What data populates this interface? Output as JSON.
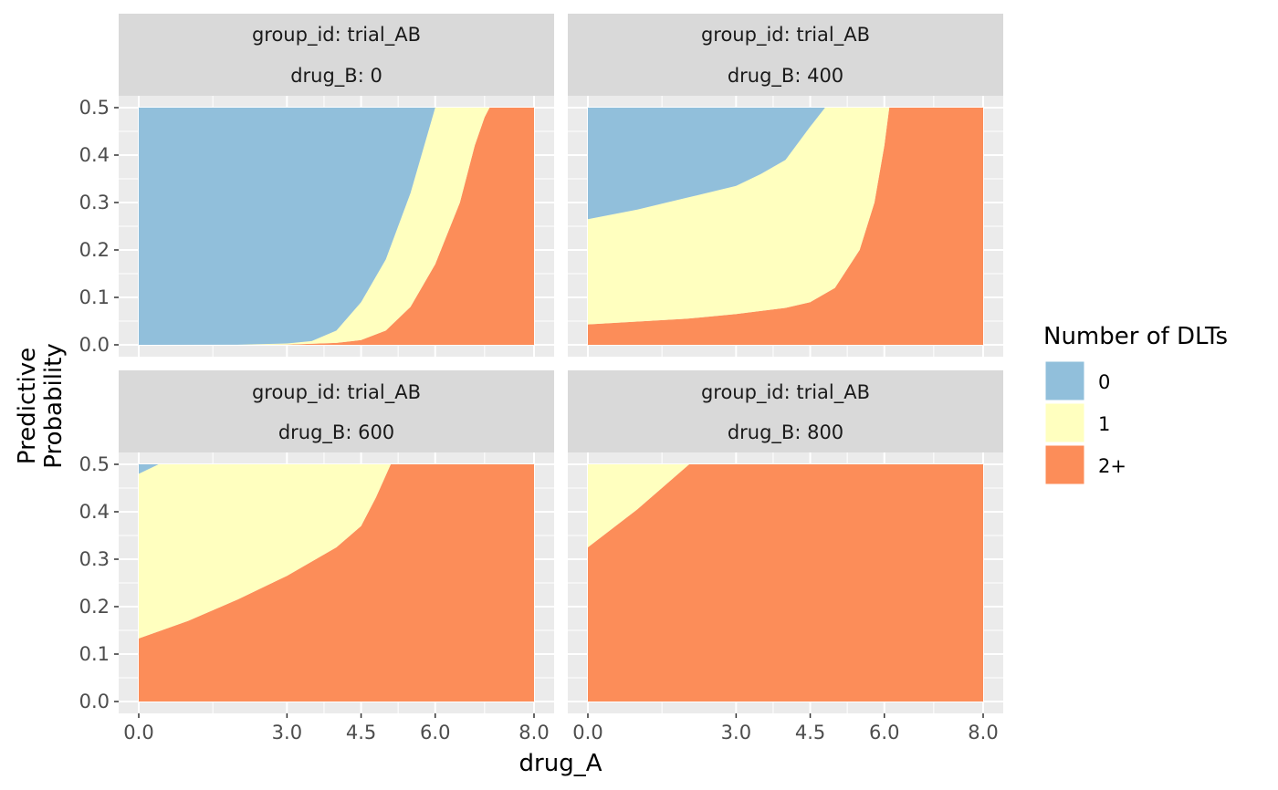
{
  "chart_data": {
    "type": "area",
    "stacked": true,
    "facet_layout": "2x2",
    "xlabel": "drug_A",
    "ylabel_lines": [
      "Predictive",
      "Probability"
    ],
    "xlim": [
      0,
      8
    ],
    "ylim": [
      0,
      0.5
    ],
    "x_ticks": [
      0,
      3,
      4.5,
      6,
      8
    ],
    "x_tick_labels": [
      "0.0",
      "3.0",
      "4.5",
      "6.0",
      "8.0"
    ],
    "y_ticks": [
      0,
      0.1,
      0.2,
      0.3,
      0.4,
      0.5
    ],
    "y_tick_labels": [
      "0.0",
      "0.1",
      "0.2",
      "0.3",
      "0.4",
      "0.5"
    ],
    "grid": true,
    "legend": {
      "title": "Number of DLTs",
      "position": "right",
      "items": [
        {
          "label": "0",
          "color": "#91bfdb"
        },
        {
          "label": "1",
          "color": "#ffffbf"
        },
        {
          "label": "2+",
          "color": "#fc8d59"
        }
      ]
    },
    "panels": [
      {
        "strip_top": "group_id: trial_AB",
        "strip_bottom": "drug_B: 0",
        "boundary_2plus_top": [
          [
            0,
            0
          ],
          [
            2,
            0.0001
          ],
          [
            3,
            0.0005
          ],
          [
            4,
            0.004
          ],
          [
            4.5,
            0.01
          ],
          [
            5,
            0.03
          ],
          [
            5.5,
            0.08
          ],
          [
            6,
            0.17
          ],
          [
            6.5,
            0.3
          ],
          [
            6.8,
            0.42
          ],
          [
            7,
            0.48
          ],
          [
            7.1,
            0.5
          ],
          [
            8,
            0.5
          ]
        ],
        "boundary_1_top": [
          [
            0,
            0
          ],
          [
            2,
            0.0003
          ],
          [
            3,
            0.003
          ],
          [
            3.5,
            0.008
          ],
          [
            4,
            0.03
          ],
          [
            4.5,
            0.09
          ],
          [
            5,
            0.18
          ],
          [
            5.5,
            0.32
          ],
          [
            6,
            0.5
          ],
          [
            8,
            0.5
          ]
        ]
      },
      {
        "strip_top": "group_id: trial_AB",
        "strip_bottom": "drug_B: 400",
        "boundary_2plus_top": [
          [
            0,
            0.043
          ],
          [
            2,
            0.055
          ],
          [
            3,
            0.065
          ],
          [
            4,
            0.078
          ],
          [
            4.5,
            0.09
          ],
          [
            5,
            0.12
          ],
          [
            5.5,
            0.2
          ],
          [
            5.8,
            0.3
          ],
          [
            6,
            0.42
          ],
          [
            6.1,
            0.5
          ],
          [
            8,
            0.5
          ]
        ],
        "boundary_1_top": [
          [
            0,
            0.265
          ],
          [
            1,
            0.285
          ],
          [
            2,
            0.31
          ],
          [
            3,
            0.335
          ],
          [
            3.5,
            0.36
          ],
          [
            4,
            0.39
          ],
          [
            4.5,
            0.46
          ],
          [
            4.8,
            0.5
          ],
          [
            8,
            0.5
          ]
        ]
      },
      {
        "strip_top": "group_id: trial_AB",
        "strip_bottom": "drug_B: 600",
        "boundary_2plus_top": [
          [
            0,
            0.133
          ],
          [
            1,
            0.17
          ],
          [
            2,
            0.215
          ],
          [
            3,
            0.265
          ],
          [
            4,
            0.325
          ],
          [
            4.5,
            0.37
          ],
          [
            4.8,
            0.43
          ],
          [
            5.1,
            0.5
          ],
          [
            8,
            0.5
          ]
        ],
        "boundary_1_top": [
          [
            0,
            0.48
          ],
          [
            0.4,
            0.5
          ],
          [
            8,
            0.5
          ]
        ]
      },
      {
        "strip_top": "group_id: trial_AB",
        "strip_bottom": "drug_B: 800",
        "boundary_2plus_top": [
          [
            0,
            0.325
          ],
          [
            1,
            0.405
          ],
          [
            2.05,
            0.5
          ],
          [
            8,
            0.5
          ]
        ],
        "boundary_1_top": [
          [
            0,
            0.5
          ],
          [
            8,
            0.5
          ]
        ]
      }
    ]
  }
}
